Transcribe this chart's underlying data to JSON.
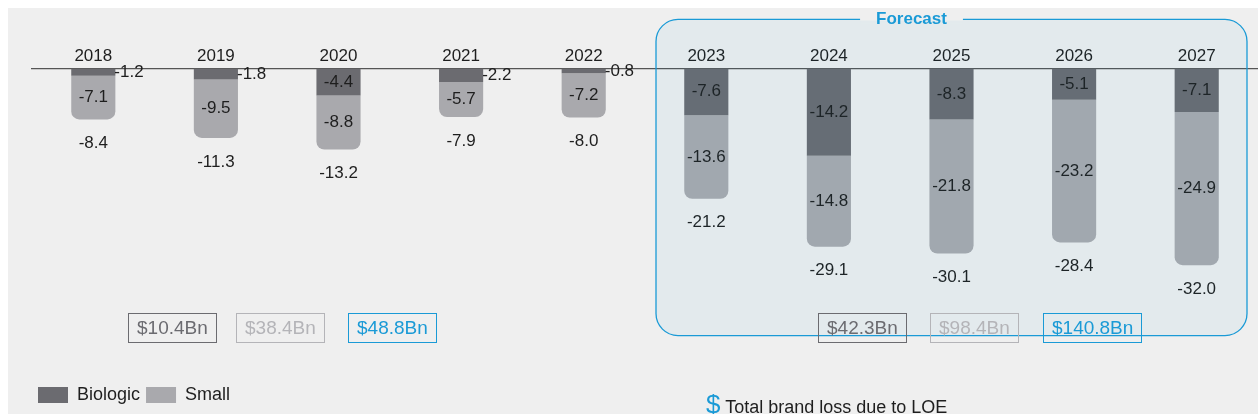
{
  "chart_data": {
    "type": "bar",
    "stacked": true,
    "categories": [
      "2018",
      "2019",
      "2020",
      "2021",
      "2022",
      "2023",
      "2024",
      "2025",
      "2026",
      "2027"
    ],
    "series": [
      {
        "name": "Biologic",
        "color": "#6b6b70",
        "values": [
          -1.2,
          -1.8,
          -4.4,
          -2.2,
          -0.8,
          -7.6,
          -14.2,
          -8.3,
          -5.1,
          -7.1
        ]
      },
      {
        "name": "Small",
        "color": "#a9a9ad",
        "values": [
          -7.1,
          -9.5,
          -8.8,
          -5.7,
          -7.2,
          -13.6,
          -14.8,
          -21.8,
          -23.2,
          -24.9
        ]
      }
    ],
    "data_labels": true,
    "totals": [
      "-8.4",
      "-11.3",
      "-13.2",
      "-7.9",
      "-8.0",
      "-21.2",
      "-29.1",
      "-30.1",
      "-28.4",
      "-32.0"
    ],
    "bands": [
      {
        "axis": "x",
        "from": "2023",
        "to": "2027",
        "label": "Forecast",
        "color": "#1a9ad6"
      }
    ],
    "annotations": [
      "$10.4Bn",
      "$38.4Bn",
      "$48.8Bn",
      "$42.3Bn",
      "$98.4Bn",
      "$140.8Bn",
      "$ Total brand loss due to LOE"
    ],
    "legend": "bottom left",
    "grid": false
  }
}
